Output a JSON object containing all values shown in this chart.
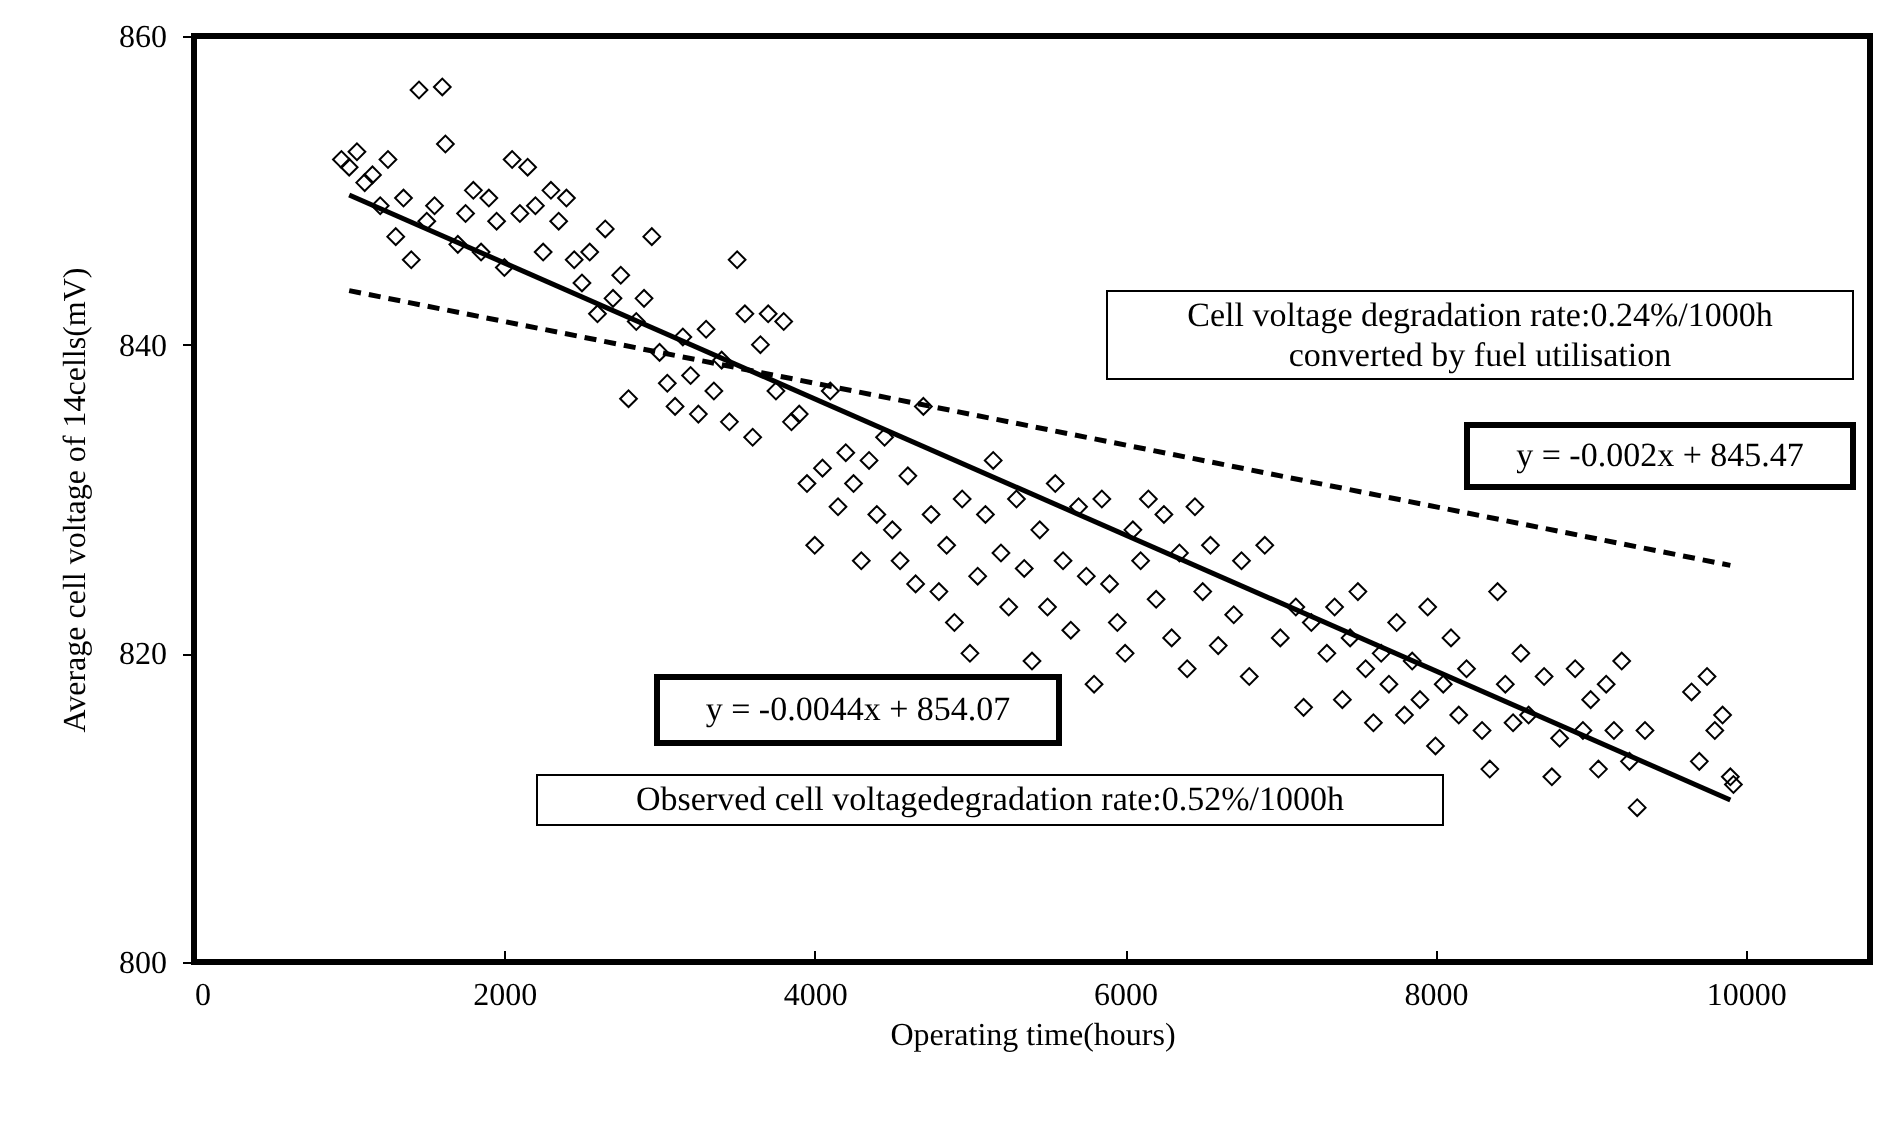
{
  "chart_data": {
    "type": "scatter",
    "xlabel": "Operating time(hours)",
    "ylabel": "Average cell voltage of 14cells(mV)",
    "xlim": [
      0,
      10800
    ],
    "ylim": [
      800,
      860
    ],
    "xticks": [
      0,
      2000,
      4000,
      6000,
      8000,
      10000
    ],
    "yticks": [
      800,
      820,
      840,
      860
    ],
    "annotations": [
      "Cell voltage degradation rate:0.24%/1000h\nconverted by fuel utilisation",
      "y = -0.002x + 845.47",
      "y = -0.0044x + 854.07",
      "Observed cell voltagedegradation rate:0.52%/1000h"
    ],
    "series": [
      {
        "marker": "diamond",
        "color": "#000000",
        "x": [
          950,
          1000,
          1050,
          1100,
          1150,
          1200,
          1250,
          1300,
          1350,
          1400,
          1450,
          1500,
          1550,
          1600,
          1620,
          1700,
          1750,
          1800,
          1850,
          1900,
          1950,
          2000,
          2050,
          2100,
          2150,
          2200,
          2250,
          2300,
          2350,
          2400,
          2450,
          2500,
          2550,
          2600,
          2650,
          2700,
          2750,
          2800,
          2850,
          2900,
          2950,
          3000,
          3050,
          3100,
          3150,
          3200,
          3250,
          3300,
          3350,
          3400,
          3450,
          3500,
          3550,
          3600,
          3650,
          3700,
          3750,
          3800,
          3850,
          3900,
          3950,
          4000,
          4050,
          4100,
          4150,
          4200,
          4250,
          4300,
          4350,
          4400,
          4450,
          4500,
          4550,
          4600,
          4650,
          4700,
          4750,
          4800,
          4850,
          4900,
          4950,
          5000,
          5050,
          5100,
          5150,
          5200,
          5250,
          5300,
          5350,
          5400,
          5450,
          5500,
          5550,
          5600,
          5650,
          5700,
          5750,
          5800,
          5850,
          5900,
          5950,
          6000,
          6050,
          6100,
          6150,
          6200,
          6250,
          6300,
          6350,
          6400,
          6450,
          6500,
          6550,
          6600,
          6700,
          6750,
          6800,
          6900,
          7000,
          7100,
          7150,
          7200,
          7300,
          7350,
          7400,
          7450,
          7500,
          7550,
          7600,
          7650,
          7700,
          7750,
          7800,
          7850,
          7900,
          7950,
          8000,
          8050,
          8100,
          8150,
          8200,
          8300,
          8350,
          8400,
          8450,
          8500,
          8550,
          8600,
          8700,
          8750,
          8800,
          8900,
          8950,
          9000,
          9050,
          9100,
          9150,
          9200,
          9250,
          9300,
          9350,
          9650,
          9700,
          9750,
          9800,
          9850,
          9900,
          9920
        ],
        "values": [
          852,
          851.5,
          852.5,
          850.5,
          851,
          849,
          852,
          847,
          849.5,
          845.5,
          856.5,
          848,
          849,
          856.7,
          853,
          846.5,
          848.5,
          850,
          846,
          849.5,
          848,
          845,
          852,
          848.5,
          851.5,
          849,
          846,
          850,
          848,
          849.5,
          845.5,
          844,
          846,
          842,
          847.5,
          843,
          844.5,
          836.5,
          841.5,
          843,
          847,
          839.5,
          837.5,
          836,
          840.5,
          838,
          835.5,
          841,
          837,
          839,
          835,
          845.5,
          842,
          834,
          840,
          842,
          837,
          841.5,
          835,
          835.5,
          831,
          827,
          832,
          837,
          829.5,
          833,
          831,
          826,
          832.5,
          829,
          834,
          828,
          826,
          831.5,
          824.5,
          836,
          829,
          824,
          827,
          822,
          830,
          820,
          825,
          829,
          832.5,
          826.5,
          823,
          830,
          825.5,
          819.5,
          828,
          823,
          831,
          826,
          821.5,
          829.5,
          825,
          818,
          830,
          824.5,
          822,
          820,
          828,
          826,
          830,
          823.5,
          829,
          821,
          826.5,
          819,
          829.5,
          824,
          827,
          820.5,
          822.5,
          826,
          818.5,
          827,
          821,
          823,
          816.5,
          822,
          820,
          823,
          817,
          821,
          824,
          819,
          815.5,
          820,
          818,
          822,
          816,
          819.5,
          817,
          823,
          814,
          818,
          821,
          816,
          819,
          815,
          812.5,
          824,
          818,
          815.5,
          820,
          816,
          818.5,
          812,
          814.5,
          819,
          815,
          817,
          812.5,
          818,
          815,
          819.5,
          813,
          810,
          815,
          817.5,
          813,
          818.5,
          815,
          816,
          812,
          811.5
        ]
      },
      {
        "type": "line",
        "color": "#000000",
        "line_style": "solid",
        "x": [
          1000,
          9900
        ],
        "values": [
          849.7,
          810.5
        ]
      },
      {
        "type": "line",
        "color": "#000000",
        "line_style": "dashed",
        "x": [
          1000,
          9900
        ],
        "values": [
          843.5,
          825.7
        ]
      }
    ]
  }
}
